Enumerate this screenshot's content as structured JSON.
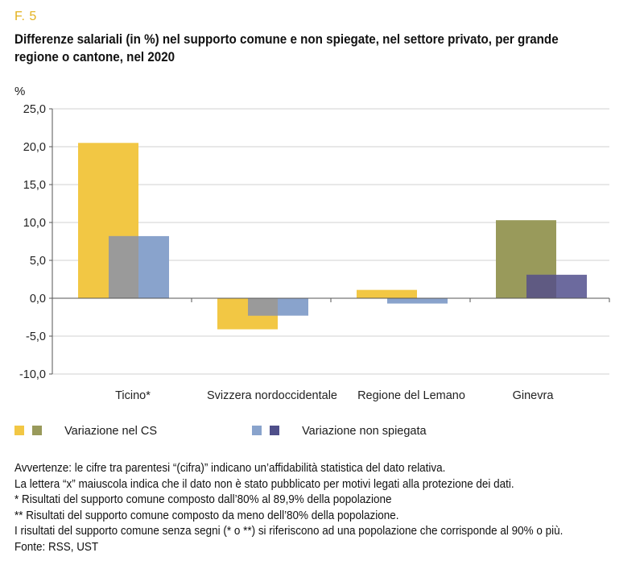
{
  "header": {
    "figure_number": "F. 5",
    "title": "Differenze salariali (in %) nel supporto comune e non spiegate, nel settore privato, per grande regione o cantone, nel 2020"
  },
  "chart_data": {
    "type": "bar",
    "ylabel": "%",
    "ylim": [
      -10,
      25
    ],
    "yticks": [
      "25,0",
      "20,0",
      "15,0",
      "10,0",
      "5,0",
      "0,0",
      "-5,0",
      "-10,0"
    ],
    "ytick_values": [
      25,
      20,
      15,
      10,
      5,
      0,
      -5,
      -10
    ],
    "grid": true,
    "categories": [
      "Ticino*",
      "Svizzera nordoccidentale",
      "Regione del Lemano",
      "Ginevra"
    ],
    "series": [
      {
        "name": "Variazione nel CS",
        "values": [
          20.5,
          -4.1,
          1.1,
          10.3
        ],
        "colors": [
          "#f2c744",
          "#f2c744",
          "#f2c744",
          "#999a5b"
        ]
      },
      {
        "name": "Variazione non spiegata",
        "values": [
          8.2,
          -2.3,
          -0.7,
          3.1
        ],
        "colors": [
          "#89a3cc",
          "#89a3cc",
          "#89a3cc",
          "#6c6a9e"
        ]
      }
    ],
    "overlap_color": "#9a9a9a",
    "overlap_color_dark": "#5f5a82",
    "legend_position": "bottom"
  },
  "legend": {
    "items": [
      {
        "label": "Variazione nel CS",
        "colors": [
          "#f2c744",
          "#999a5b"
        ]
      },
      {
        "label": "Variazione non spiegata",
        "colors": [
          "#89a3cc",
          "#4f4f8a"
        ]
      }
    ]
  },
  "notes": [
    "Avvertenze: le cifre tra parentesi “(cifra)” indicano un’affidabilità statistica del dato relativa.",
    "La lettera “x” maiuscola indica che il dato non è stato pubblicato per motivi legati alla protezione dei dati.",
    "*  Risultati del supporto comune composto dall’80% al 89,9% della popolazione",
    "** Risultati del supporto comune composto da meno dell’80% della popolazione.",
    "I risultati del supporto comune senza segni (* o **) si riferiscono ad una popolazione che corrisponde al 90% o più.",
    "Fonte: RSS, UST"
  ]
}
